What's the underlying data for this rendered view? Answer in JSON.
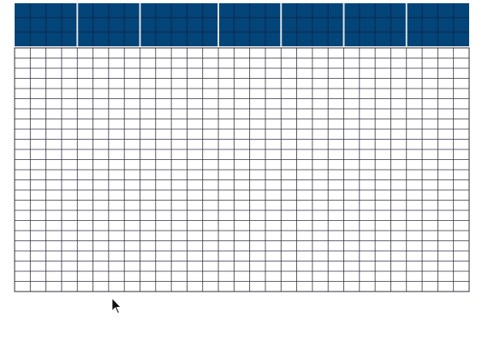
{
  "theme": {
    "header_fill": "#034479",
    "header_gridline": "#0a2a4a",
    "band_separator": "#e6e6e6",
    "body_fill": "#ffffff",
    "gridline": "#2a2a3a",
    "cursor_fill": "#111111",
    "cursor_outline": "#ffffff"
  },
  "grid": {
    "header_rows": 3,
    "body_rows": 24,
    "band_column_counts": [
      4,
      4,
      5,
      4,
      4,
      4,
      4
    ]
  },
  "cursor": {
    "icon": "arrow-cursor-icon"
  }
}
